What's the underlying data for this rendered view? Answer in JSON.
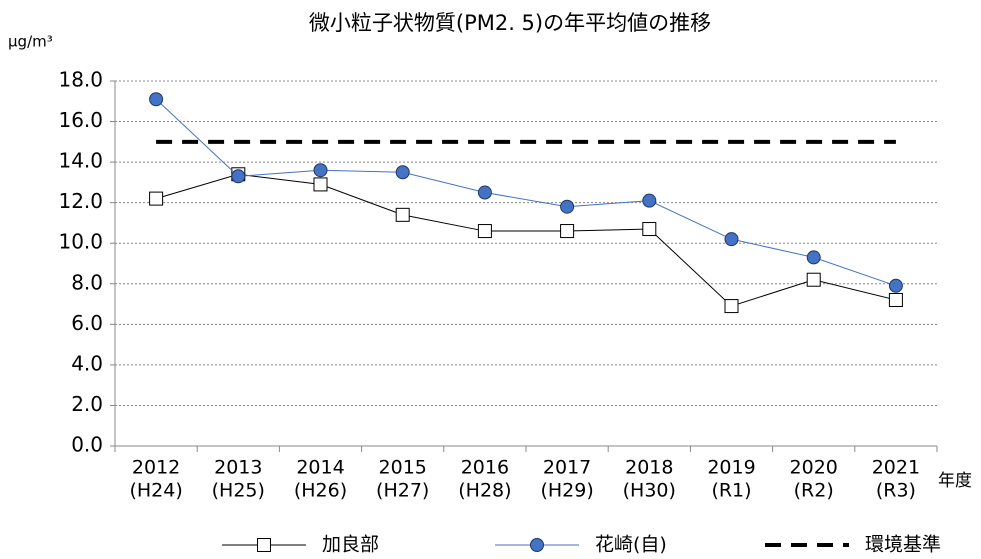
{
  "chart_data": {
    "type": "line",
    "title": "微小粒子状物質(PM2. 5)の年平均値の推移",
    "y_label": "μg/m³",
    "x_label": "年度",
    "categories": [
      [
        "2012",
        "(H24)"
      ],
      [
        "2013",
        "(H25)"
      ],
      [
        "2014",
        "(H26)"
      ],
      [
        "2015",
        "(H27)"
      ],
      [
        "2016",
        "(H28)"
      ],
      [
        "2017",
        "(H29)"
      ],
      [
        "2018",
        "(H30)"
      ],
      [
        "2019",
        "(R1)"
      ],
      [
        "2020",
        "(R2)"
      ],
      [
        "2021",
        "(R3)"
      ]
    ],
    "series": [
      {
        "name": "加良部",
        "color": "#000000",
        "marker": "square",
        "values": [
          12.2,
          13.4,
          12.9,
          11.4,
          10.6,
          10.6,
          10.7,
          6.9,
          8.2,
          7.2
        ]
      },
      {
        "name": "花崎(自)",
        "color": "#4472c4",
        "marker": "circle",
        "values": [
          17.1,
          13.3,
          13.6,
          13.5,
          12.5,
          11.8,
          12.1,
          10.2,
          9.3,
          7.9
        ]
      },
      {
        "name": "環境基準",
        "color": "#000000",
        "marker": "dash",
        "values": [
          15,
          15,
          15,
          15,
          15,
          15,
          15,
          15,
          15,
          15
        ]
      }
    ],
    "ylim": [
      0,
      18
    ],
    "yticks": [
      {
        "value": 0,
        "label": "0.0"
      },
      {
        "value": 2,
        "label": "2.0"
      },
      {
        "value": 4,
        "label": "4.0"
      },
      {
        "value": 6,
        "label": "6.0"
      },
      {
        "value": 8,
        "label": "8.0"
      },
      {
        "value": 10,
        "label": "10.0"
      },
      {
        "value": 12,
        "label": "12.0"
      },
      {
        "value": 14,
        "label": "14.0"
      },
      {
        "value": 16,
        "label": "16.0"
      },
      {
        "value": 18,
        "label": "18.0"
      }
    ],
    "grid": true,
    "legend": "bottom"
  }
}
